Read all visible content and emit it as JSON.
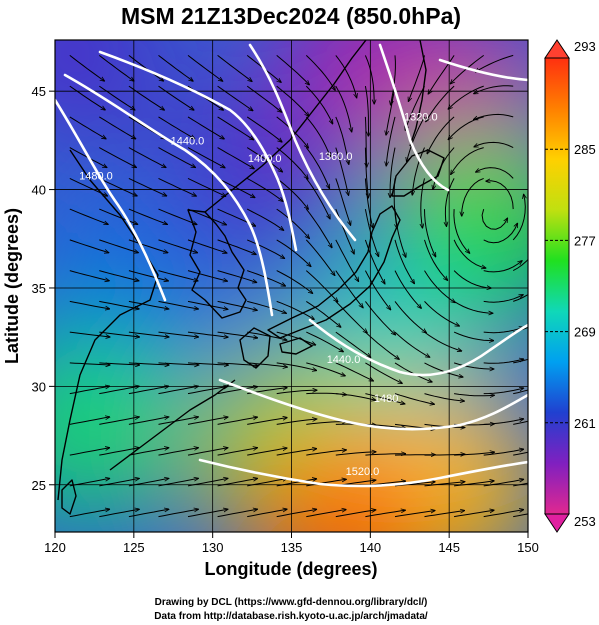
{
  "chart_data": {
    "type": "map",
    "title": "MSM 21Z13Dec2024 (850.0hPa)",
    "xlabel": "Longitude (degrees)",
    "ylabel": "Latitude  (degrees)",
    "xlim": [
      120,
      150
    ],
    "ylim": [
      22.6,
      47.6
    ],
    "x_ticks": [
      120,
      125,
      130,
      135,
      140,
      145,
      150
    ],
    "y_ticks": [
      25,
      30,
      35,
      40,
      45
    ],
    "grid": true,
    "colorbar": {
      "min": 253,
      "max": 293,
      "tick_labels": [
        "293",
        "285",
        "277",
        "269",
        "261",
        "253"
      ],
      "tick_values": [
        293,
        285,
        277,
        269,
        261,
        253
      ],
      "colormap": [
        "#e02890",
        "#8020c0",
        "#2040d0",
        "#00a0f0",
        "#10d8b8",
        "#20e020",
        "#c0e010",
        "#ffd000",
        "#ff8000",
        "#ff3010"
      ]
    },
    "temperature_field": [
      {
        "lon": 121,
        "lat": 47,
        "value": 260
      },
      {
        "lon": 140,
        "lat": 46,
        "value": 256
      },
      {
        "lon": 146,
        "lat": 44,
        "value": 254
      },
      {
        "lon": 132,
        "lat": 40,
        "value": 260
      },
      {
        "lon": 125,
        "lat": 35,
        "value": 264
      },
      {
        "lon": 147,
        "lat": 38,
        "value": 275
      },
      {
        "lon": 141,
        "lat": 32,
        "value": 270
      },
      {
        "lon": 122,
        "lat": 28,
        "value": 273
      },
      {
        "lon": 135,
        "lat": 27,
        "value": 279
      },
      {
        "lon": 145,
        "lat": 25,
        "value": 285
      },
      {
        "lon": 138,
        "lat": 23,
        "value": 290
      }
    ],
    "contours": [
      {
        "label": "1440.0",
        "label_lon": 128.4,
        "label_lat": 42.3
      },
      {
        "label": "1480.0",
        "label_lon": 122.6,
        "label_lat": 40.5
      },
      {
        "label": "1400.0",
        "label_lon": 133.3,
        "label_lat": 41.4
      },
      {
        "label": "1360.0",
        "label_lon": 137.8,
        "label_lat": 41.5
      },
      {
        "label": "1320.0",
        "label_lon": 143.2,
        "label_lat": 43.5
      },
      {
        "label": "1440.0",
        "label_lon": 138.3,
        "label_lat": 31.2
      },
      {
        "label": "1480",
        "label_lon": 141.0,
        "label_lat": 29.2
      },
      {
        "label": "1520.0",
        "label_lon": 139.5,
        "label_lat": 25.5
      }
    ]
  },
  "footer": {
    "line1": "Drawing by DCL (https://www.gfd-dennou.org/library/dcl/)",
    "line2": "Data from http://database.rish.kyoto-u.ac.jp/arch/jmadata/"
  }
}
